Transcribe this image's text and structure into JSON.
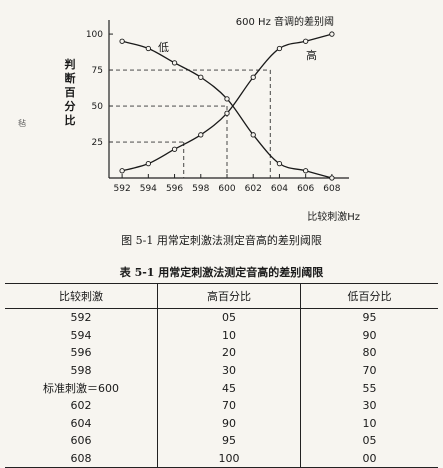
{
  "chart_data": {
    "type": "line",
    "title": "600 Hz 音调的差别阈",
    "xlabel": "比较刺激Hz",
    "ylabel": "判断百分比",
    "x": [
      592,
      594,
      596,
      598,
      600,
      602,
      604,
      606,
      608
    ],
    "x_ticks": [
      "592",
      "594",
      "596",
      "598",
      "600",
      "602",
      "604",
      "606",
      "608"
    ],
    "y_ticks": [
      "25",
      "50",
      "75",
      "100"
    ],
    "xlim": [
      591,
      609
    ],
    "ylim": [
      0,
      107
    ],
    "series": [
      {
        "name": "高",
        "values": [
          5,
          10,
          20,
          30,
          45,
          70,
          90,
          95,
          100
        ]
      },
      {
        "name": "低",
        "values": [
          95,
          90,
          80,
          70,
          55,
          30,
          10,
          5,
          0
        ]
      }
    ],
    "curve_labels": {
      "low": "低",
      "high": "高"
    },
    "reference_lines": [
      {
        "y": 25,
        "x": 596.7
      },
      {
        "y": 50,
        "x": 600
      },
      {
        "y": 75,
        "x": 603.3
      }
    ]
  },
  "figure_caption": "图 5-1    用常定刺激法测定音高的差别阈限",
  "stray_mark": "毡",
  "table": {
    "title": "表 5-1    用常定刺激法测定音高的差别阈限",
    "headers": [
      "比较刺激",
      "高百分比",
      "低百分比"
    ],
    "rows": [
      [
        "592",
        "05",
        "95"
      ],
      [
        "594",
        "10",
        "90"
      ],
      [
        "596",
        "20",
        "80"
      ],
      [
        "598",
        "30",
        "70"
      ],
      [
        "标准刺激＝600",
        "45",
        "55"
      ],
      [
        "602",
        "70",
        "30"
      ],
      [
        "604",
        "90",
        "10"
      ],
      [
        "606",
        "95",
        "05"
      ],
      [
        "608",
        "100",
        "00"
      ]
    ]
  }
}
